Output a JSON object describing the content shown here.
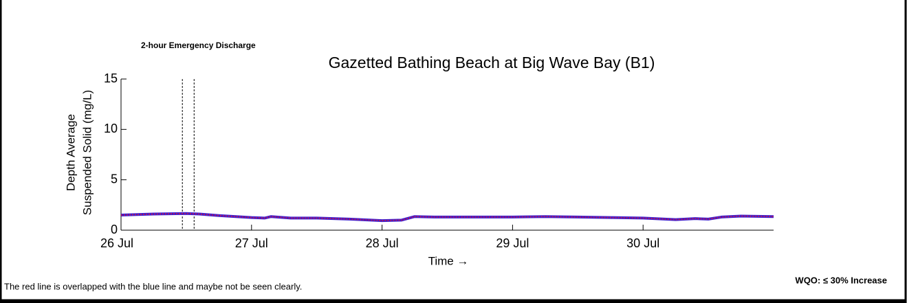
{
  "chart_data": {
    "type": "line",
    "title": "Gazetted Bathing Beach at Big Wave Bay (B1)",
    "annotation": "2-hour Emergency Discharge",
    "discharge_window": [
      0.47,
      0.56
    ],
    "ylabel": [
      "Depth Average",
      "Suspended Solid (mg/L)"
    ],
    "xlabel": "Time →",
    "note": "The red line is overlapped with the blue line and maybe not be seen clearly.",
    "wqo": "WQO: ≤ 30% Increase",
    "x": [
      0,
      0.25,
      0.5,
      0.6,
      0.75,
      1.0,
      1.1,
      1.15,
      1.3,
      1.5,
      1.75,
      2.0,
      2.15,
      2.25,
      2.4,
      2.75,
      3.0,
      3.25,
      3.5,
      3.75,
      4.0,
      4.25,
      4.4,
      4.5,
      4.6,
      4.75,
      5.0
    ],
    "series": [
      {
        "color": "#3a1fd0",
        "values": [
          1.5,
          1.6,
          1.65,
          1.6,
          1.45,
          1.25,
          1.2,
          1.35,
          1.2,
          1.2,
          1.1,
          0.95,
          1.0,
          1.35,
          1.3,
          1.3,
          1.3,
          1.35,
          1.3,
          1.25,
          1.2,
          1.05,
          1.15,
          1.1,
          1.3,
          1.4,
          1.35
        ]
      },
      {
        "color": "#c0185a",
        "values": [
          1.5,
          1.6,
          1.65,
          1.6,
          1.45,
          1.25,
          1.2,
          1.35,
          1.2,
          1.2,
          1.1,
          0.95,
          1.0,
          1.35,
          1.3,
          1.3,
          1.3,
          1.35,
          1.3,
          1.25,
          1.2,
          1.05,
          1.15,
          1.1,
          1.3,
          1.4,
          1.35
        ]
      }
    ],
    "xlim": [
      0,
      5
    ],
    "xticks": [
      {
        "value": 0,
        "label": "26 Jul"
      },
      {
        "value": 1,
        "label": "27 Jul"
      },
      {
        "value": 2,
        "label": "28 Jul"
      },
      {
        "value": 3,
        "label": "29 Jul"
      },
      {
        "value": 4,
        "label": "30 Jul"
      }
    ],
    "ylim": [
      0,
      15
    ],
    "yticks": [
      0,
      5,
      10,
      15
    ]
  }
}
